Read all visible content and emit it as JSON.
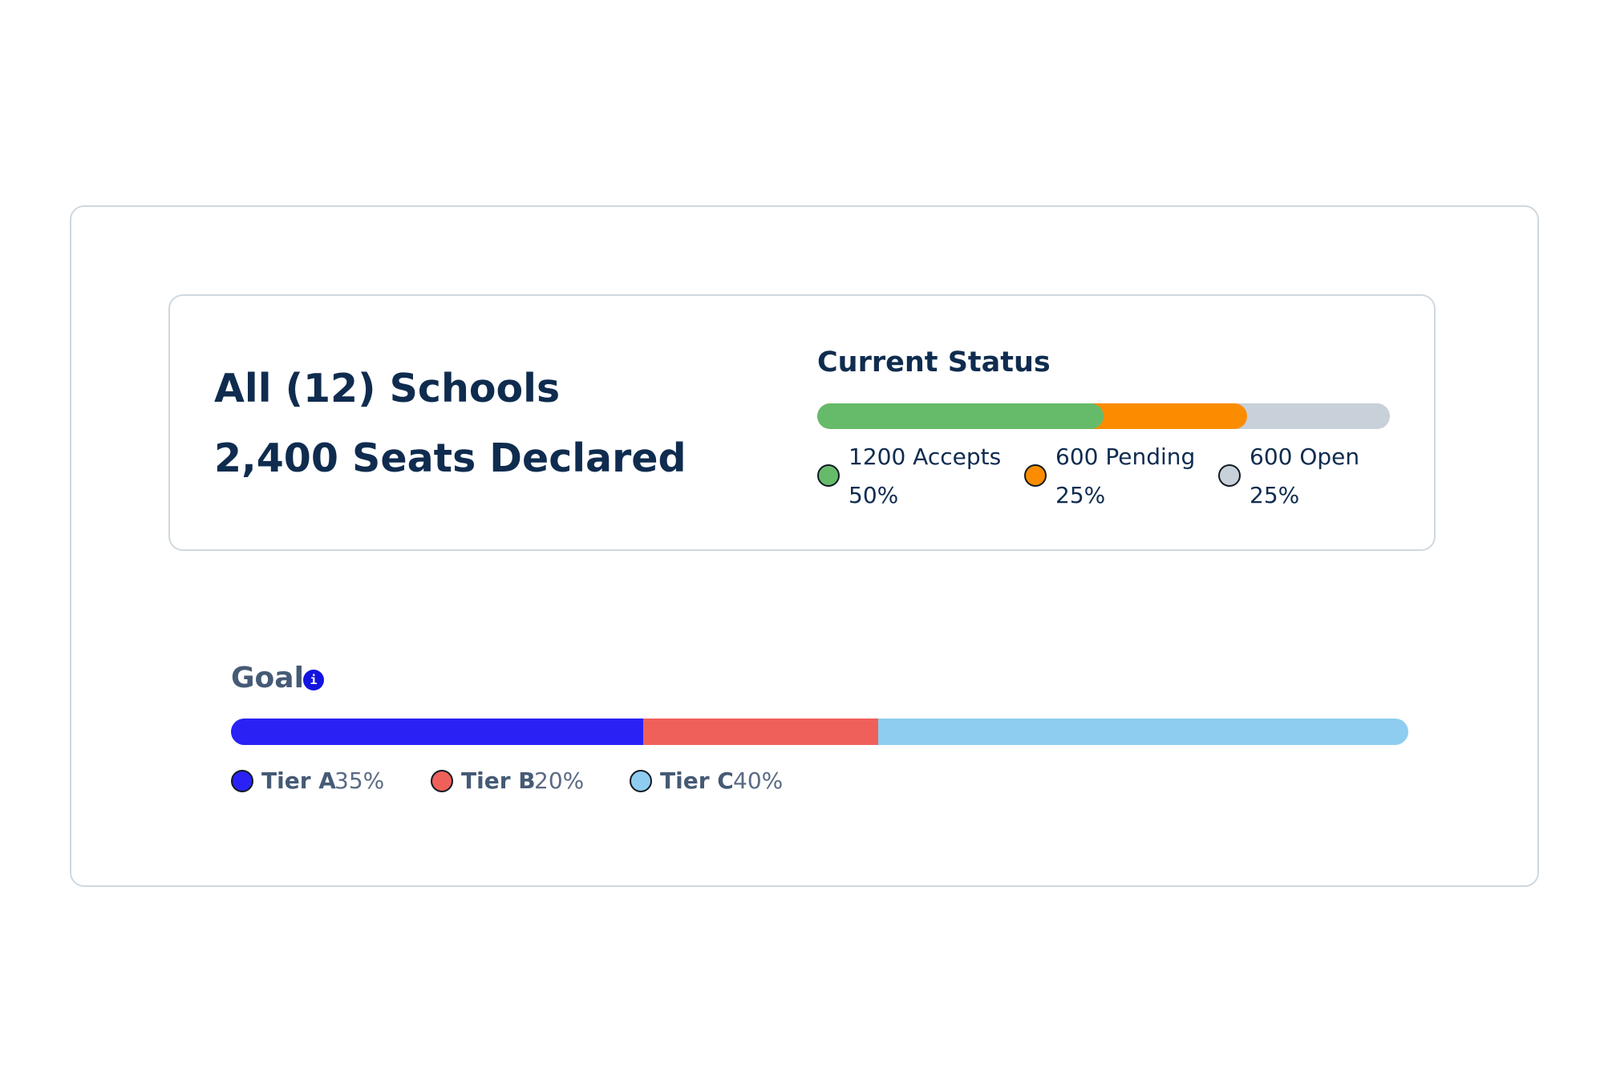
{
  "summary": {
    "schools_title": "All (12) Schools",
    "seats_title": "2,400 Seats Declared"
  },
  "status": {
    "title": "Current Status",
    "items": [
      {
        "line1": "1200 Accepts",
        "line2": "50%",
        "count": 1200,
        "percent": 50,
        "color": "#66bb6a"
      },
      {
        "line1": "600 Pending",
        "line2": "25%",
        "count": 600,
        "percent": 25,
        "color": "#fb8c00"
      },
      {
        "line1": "600 Open",
        "line2": "25%",
        "count": 600,
        "percent": 25,
        "color": "#c8d0d9"
      }
    ]
  },
  "goal": {
    "title": "Goal",
    "info_icon": "info-icon",
    "info_glyph": "i",
    "items": [
      {
        "label": "Tier A",
        "pct_label": "35%",
        "percent": 35,
        "color": "#2a22f5"
      },
      {
        "label": "Tier B",
        "pct_label": "20%",
        "percent": 20,
        "color": "#f0605a"
      },
      {
        "label": "Tier C",
        "pct_label": "40%",
        "percent": 40,
        "color": "#8ecdef"
      }
    ]
  }
}
